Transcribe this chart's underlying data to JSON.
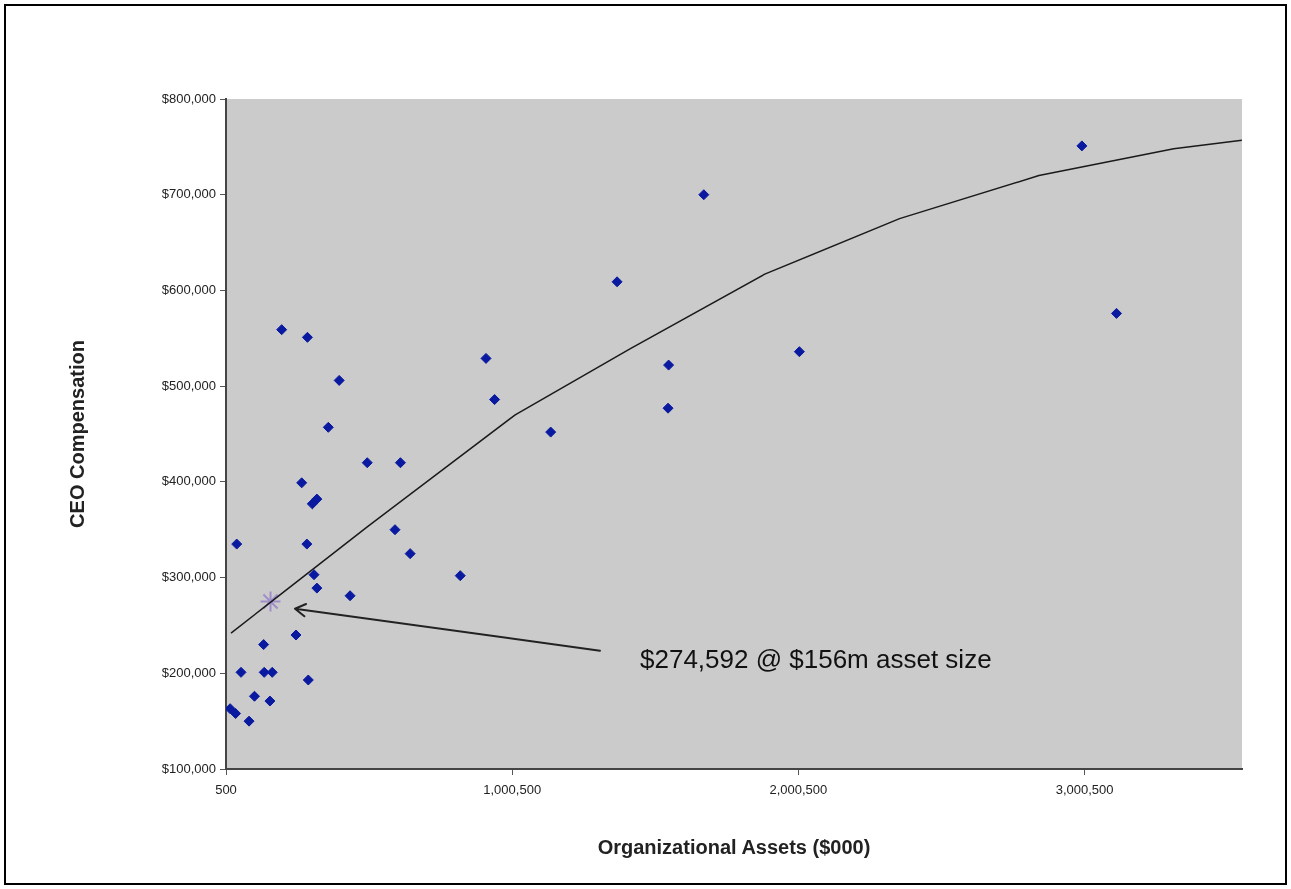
{
  "chart_data": {
    "type": "scatter",
    "xlabel": "Organizational Assets ($000)",
    "ylabel": "CEO Compensation",
    "xlim": [
      500,
      3550500
    ],
    "xticks": [
      500,
      {
        "value": 1000500,
        "label": "1,000,500"
      },
      {
        "value": 2000500,
        "label": "2,000,500"
      },
      {
        "value": 3000500,
        "label": "3,000,500"
      }
    ],
    "ylim": [
      100000,
      800000
    ],
    "yticks": [
      {
        "value": 100000,
        "label": "$100,000"
      },
      {
        "value": 200000,
        "label": "$200,000"
      },
      {
        "value": 300000,
        "label": "$300,000"
      },
      {
        "value": 400000,
        "label": "$400,000"
      },
      {
        "value": 500000,
        "label": "$500,000"
      },
      {
        "value": 600000,
        "label": "$600,000"
      },
      {
        "value": 700000,
        "label": "$700,000"
      },
      {
        "value": 800000,
        "label": "$800,000"
      }
    ],
    "grid": false,
    "legend": false,
    "series": [
      {
        "color": "#0a1aa0",
        "marker": "diamond",
        "x": [
          195000,
          285000,
          396000,
          358000,
          494000,
          610000,
          265000,
          318000,
          302000,
          38000,
          283000,
          591000,
          644000,
          308000,
          318000,
          434000,
          819000,
          245000,
          132000,
          53000,
          134000,
          162000,
          288000,
          100000,
          154000,
          15000,
          34000,
          81000,
          909000,
          939000,
          2991000,
          1670000,
          1367000,
          3112000,
          1547000,
          2004000,
          1545000,
          1135000
        ],
        "values": [
          559000,
          551000,
          506000,
          457000,
          420000,
          420000,
          399000,
          382000,
          377000,
          335000,
          335000,
          350000,
          325000,
          303000,
          289000,
          281000,
          302000,
          240000,
          230000,
          201000,
          201000,
          201000,
          193000,
          176000,
          171000,
          163000,
          158000,
          150000,
          529000,
          486000,
          751000,
          700000,
          609000,
          576000,
          522000,
          536000,
          477000,
          452000
        ]
      },
      {
        "type": "line",
        "color": "#1a1a1a",
        "marker": "none",
        "line_style": "solid",
        "x": [
          18000,
          151000,
          494000,
          1011000,
          1412000,
          1883000,
          2354000,
          2841000,
          3312000,
          3550000
        ],
        "values": [
          242000,
          273000,
          353000,
          470000,
          539000,
          617000,
          675000,
          720000,
          748000,
          757000
        ]
      },
      {
        "color": "#9f8fc8",
        "marker": "cross",
        "x": [
          156000
        ],
        "values": [
          275000
        ]
      }
    ],
    "annotations": [
      "$274,592 @ $156m asset size"
    ]
  }
}
